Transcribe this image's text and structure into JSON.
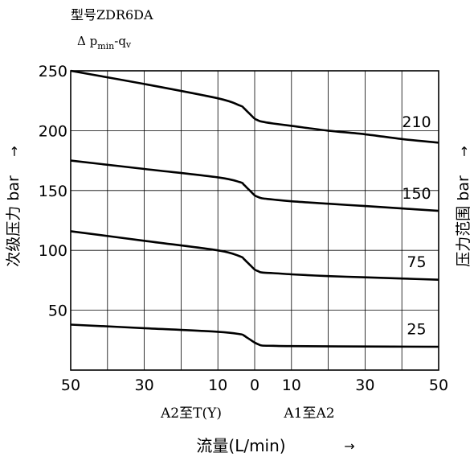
{
  "chart_data": {
    "type": "line",
    "title": "型号ZDR6DA",
    "subtitle": {
      "prefix": "Δ p",
      "sub": "min",
      "suffix": "-q",
      "suffix_sub": "v"
    },
    "ylabel_left": "次级压力 bar",
    "ylabel_right": "压力范围 bar",
    "arrow": "→",
    "xlabel": "流量(L/min)",
    "x_region_left": "A2至T(Y)",
    "x_region_right": "A1至A2",
    "ylim": [
      0,
      250
    ],
    "xlim": [
      -50,
      50
    ],
    "x_ticks": [
      {
        "v": -50,
        "label": "50"
      },
      {
        "v": -30,
        "label": "30"
      },
      {
        "v": -10,
        "label": "10"
      },
      {
        "v": 0,
        "label": "0"
      },
      {
        "v": 10,
        "label": "10"
      },
      {
        "v": 30,
        "label": "30"
      },
      {
        "v": 50,
        "label": "50"
      }
    ],
    "y_ticks": [
      {
        "v": 50,
        "label": "50"
      },
      {
        "v": 100,
        "label": "100"
      },
      {
        "v": 150,
        "label": "150"
      },
      {
        "v": 200,
        "label": "200"
      },
      {
        "v": 250,
        "label": "250"
      }
    ],
    "grid": true,
    "series": [
      {
        "name": "210",
        "points": [
          [
            -50,
            250
          ],
          [
            -30,
            239
          ],
          [
            -10,
            227
          ],
          [
            -4,
            221
          ],
          [
            -3,
            219
          ],
          [
            -2,
            216
          ],
          [
            -1,
            213
          ],
          [
            0,
            210
          ],
          [
            1,
            208.5
          ],
          [
            2,
            207.5
          ],
          [
            5,
            206
          ],
          [
            10,
            204
          ],
          [
            20,
            200
          ],
          [
            30,
            197
          ],
          [
            40,
            193
          ],
          [
            50,
            190
          ]
        ]
      },
      {
        "name": "150",
        "points": [
          [
            -50,
            175
          ],
          [
            -30,
            168
          ],
          [
            -10,
            161
          ],
          [
            -4,
            157
          ],
          [
            -3,
            155
          ],
          [
            -2,
            152
          ],
          [
            -1,
            149
          ],
          [
            0,
            146
          ],
          [
            1,
            144.5
          ],
          [
            2,
            143.5
          ],
          [
            5,
            142.5
          ],
          [
            10,
            141
          ],
          [
            20,
            139
          ],
          [
            30,
            137
          ],
          [
            40,
            135
          ],
          [
            50,
            133
          ]
        ]
      },
      {
        "name": "75",
        "points": [
          [
            -50,
            116
          ],
          [
            -30,
            108
          ],
          [
            -10,
            100
          ],
          [
            -4,
            95
          ],
          [
            -3,
            93
          ],
          [
            -2,
            90
          ],
          [
            -1,
            87
          ],
          [
            0,
            84
          ],
          [
            1,
            82.5
          ],
          [
            2,
            81.5
          ],
          [
            5,
            81
          ],
          [
            10,
            80
          ],
          [
            20,
            78.5
          ],
          [
            30,
            77.5
          ],
          [
            40,
            76.5
          ],
          [
            50,
            75.5
          ]
        ]
      },
      {
        "name": "25",
        "points": [
          [
            -50,
            38
          ],
          [
            -30,
            35
          ],
          [
            -10,
            32
          ],
          [
            -4,
            30
          ],
          [
            -3,
            29
          ],
          [
            -2,
            27
          ],
          [
            -1,
            25
          ],
          [
            0,
            23
          ],
          [
            1,
            21.5
          ],
          [
            2,
            20.5
          ],
          [
            5,
            20.3
          ],
          [
            10,
            20
          ],
          [
            30,
            19.7
          ],
          [
            50,
            19.5
          ]
        ]
      }
    ],
    "series_label_values": [
      {
        "name": "210",
        "x": 44,
        "y": 203
      },
      {
        "name": "150",
        "x": 44,
        "y": 143
      },
      {
        "name": "75",
        "x": 44,
        "y": 86
      },
      {
        "name": "25",
        "x": 44,
        "y": 30
      }
    ]
  }
}
